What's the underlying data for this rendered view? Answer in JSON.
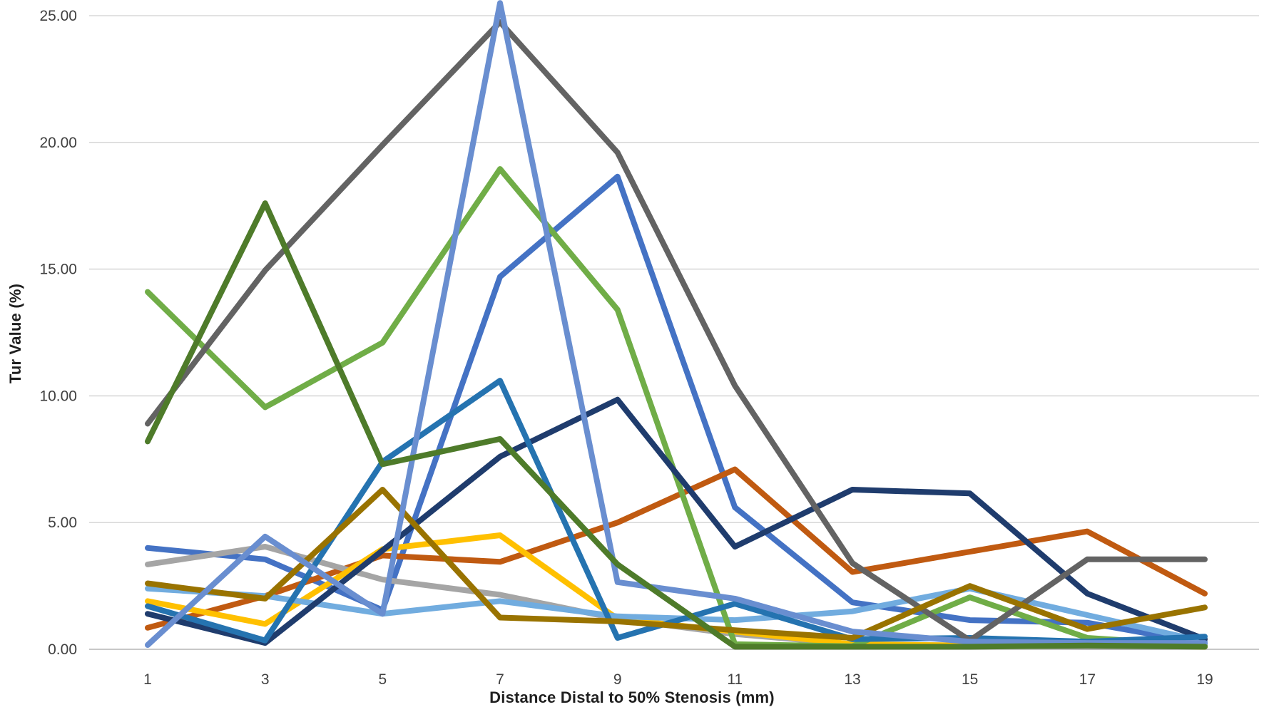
{
  "chart_data": {
    "type": "line",
    "title": "",
    "xlabel": "Distance Distal to 50% Stenosis (mm)",
    "ylabel": "Tur Value (%)",
    "x": [
      1,
      3,
      5,
      7,
      9,
      11,
      13,
      15,
      17,
      19
    ],
    "x_tick_labels": [
      "1",
      "3",
      "5",
      "7",
      "9",
      "11",
      "13",
      "15",
      "17",
      "19"
    ],
    "y_ticks": [
      0,
      5,
      10,
      15,
      20,
      25
    ],
    "y_tick_labels": [
      "0.00",
      "5.00",
      "10.00",
      "15.00",
      "20.00",
      "25.00"
    ],
    "ylim": [
      0,
      25.5
    ],
    "grid": "horizontal",
    "gridline_color": "#D9D9D9",
    "zero_line_color": "#C8C8C8",
    "legend": "none",
    "line_width": 8,
    "series": [
      {
        "name": "blue",
        "color": "#4472C4",
        "values": [
          4.0,
          3.55,
          1.55,
          14.7,
          18.65,
          5.6,
          1.85,
          1.15,
          1.05,
          0.22
        ]
      },
      {
        "name": "rust",
        "color": "#C05A11",
        "values": [
          0.85,
          2.1,
          3.7,
          3.45,
          5.0,
          7.1,
          3.05,
          3.85,
          4.65,
          2.2
        ]
      },
      {
        "name": "light-gray",
        "color": "#A5A5A5",
        "values": [
          3.35,
          4.05,
          2.75,
          2.15,
          1.2,
          0.6,
          0.2,
          0.15,
          0.1,
          0.1
        ]
      },
      {
        "name": "gold",
        "color": "#FFC000",
        "values": [
          1.9,
          1.0,
          3.95,
          4.5,
          1.2,
          0.7,
          0.2,
          0.15,
          0.2,
          0.1
        ]
      },
      {
        "name": "sky-blue",
        "color": "#71ACDF",
        "values": [
          2.4,
          2.1,
          1.4,
          1.9,
          1.3,
          1.15,
          1.5,
          2.4,
          1.35,
          0.3
        ]
      },
      {
        "name": "light-green",
        "color": "#70AD47",
        "values": [
          14.1,
          9.55,
          12.1,
          18.95,
          13.4,
          0.2,
          0.12,
          2.05,
          0.45,
          0.15
        ]
      },
      {
        "name": "navy",
        "color": "#1F3C6D",
        "values": [
          1.4,
          0.25,
          3.9,
          7.6,
          9.85,
          4.05,
          6.3,
          6.15,
          2.2,
          0.4
        ]
      },
      {
        "name": "teal-blue",
        "color": "#2573B0",
        "values": [
          1.7,
          0.35,
          7.4,
          10.6,
          0.45,
          1.8,
          0.4,
          0.45,
          0.3,
          0.5
        ]
      },
      {
        "name": "dark-gray",
        "color": "#636363",
        "values": [
          8.9,
          14.95,
          19.9,
          24.75,
          19.6,
          10.4,
          3.4,
          0.35,
          3.55,
          3.55
        ]
      },
      {
        "name": "olive",
        "color": "#997300",
        "values": [
          2.6,
          2.0,
          6.3,
          1.25,
          1.1,
          0.75,
          0.45,
          2.5,
          0.8,
          1.65
        ]
      },
      {
        "name": "cornflower",
        "color": "#698ED0",
        "values": [
          0.17,
          4.45,
          1.4,
          25.5,
          2.65,
          2.0,
          0.7,
          0.3,
          0.25,
          0.25
        ]
      },
      {
        "name": "dark-green",
        "color": "#4E7B2A",
        "values": [
          8.2,
          17.6,
          7.3,
          8.3,
          3.35,
          0.1,
          0.1,
          0.1,
          0.15,
          0.1
        ]
      }
    ]
  }
}
